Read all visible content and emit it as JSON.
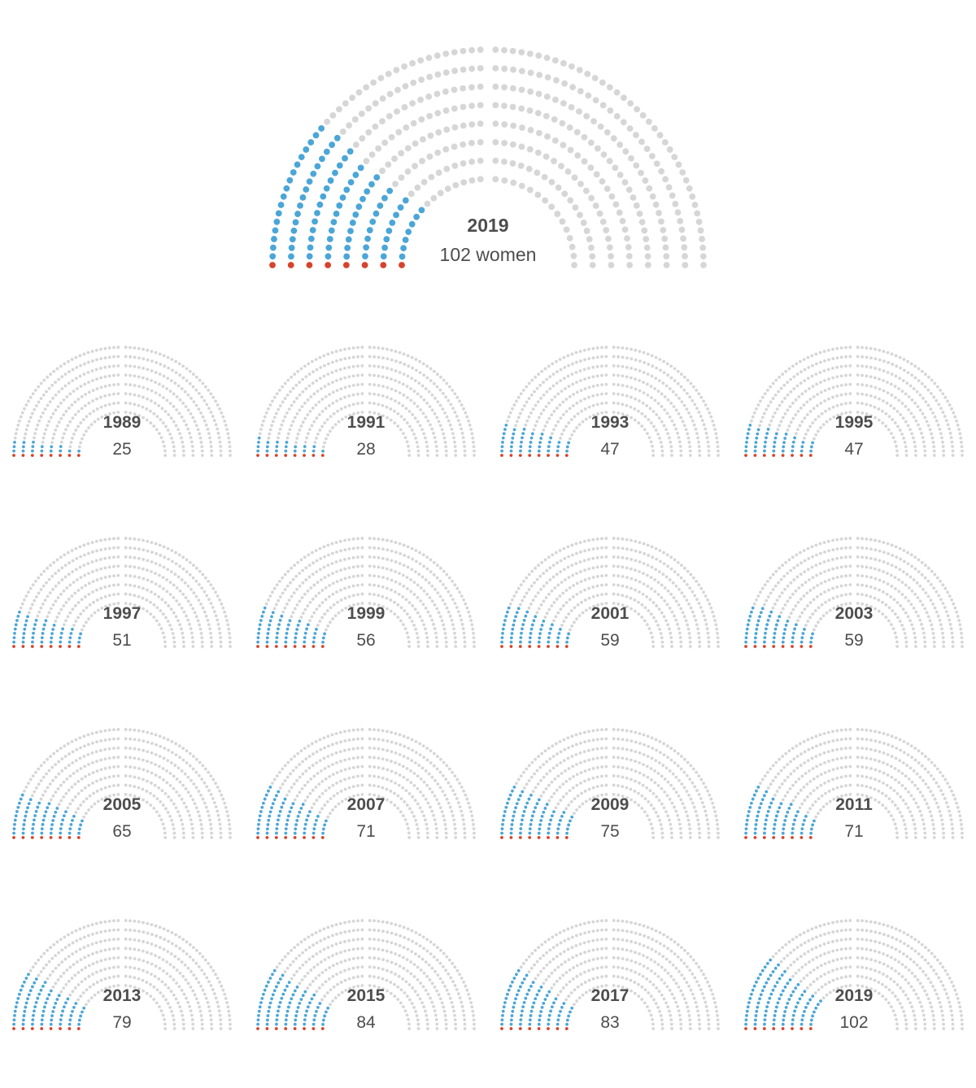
{
  "colors": {
    "empty_seat": "#d6d6d6",
    "woman_seat": "#4ba6d8",
    "woman_seat_front_row": "#d7432b",
    "text": "#4d4d4d"
  },
  "chart_data": {
    "type": "parliament",
    "total_seats": 435,
    "rows": 8,
    "featured": {
      "year": "2019",
      "women": 102,
      "count_label": "102 women"
    },
    "small_multiples": [
      {
        "year": "1989",
        "women": 25,
        "count_label": "25"
      },
      {
        "year": "1991",
        "women": 28,
        "count_label": "28"
      },
      {
        "year": "1993",
        "women": 47,
        "count_label": "47"
      },
      {
        "year": "1995",
        "women": 47,
        "count_label": "47"
      },
      {
        "year": "1997",
        "women": 51,
        "count_label": "51"
      },
      {
        "year": "1999",
        "women": 56,
        "count_label": "56"
      },
      {
        "year": "2001",
        "women": 59,
        "count_label": "59"
      },
      {
        "year": "2003",
        "women": 59,
        "count_label": "59"
      },
      {
        "year": "2005",
        "women": 65,
        "count_label": "65"
      },
      {
        "year": "2007",
        "women": 71,
        "count_label": "71"
      },
      {
        "year": "2009",
        "women": 75,
        "count_label": "75"
      },
      {
        "year": "2011",
        "women": 71,
        "count_label": "71"
      },
      {
        "year": "2013",
        "women": 79,
        "count_label": "79"
      },
      {
        "year": "2015",
        "women": 84,
        "count_label": "84"
      },
      {
        "year": "2017",
        "women": 83,
        "count_label": "83"
      },
      {
        "year": "2019",
        "women": 102,
        "count_label": "102"
      }
    ]
  }
}
